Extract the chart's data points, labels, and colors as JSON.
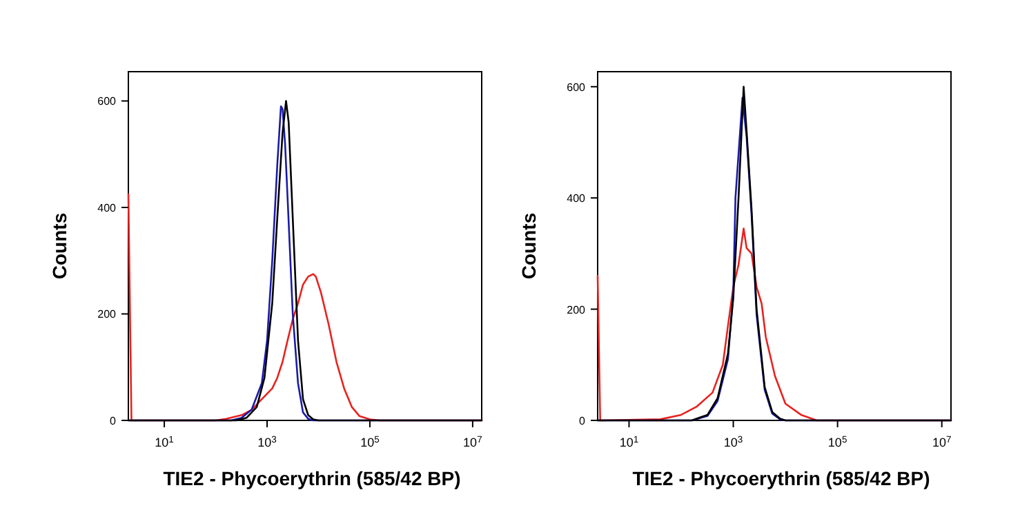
{
  "chart_data": [
    {
      "type": "line",
      "log": "x",
      "xlabel": "TIE2 - Phycoerythrin (585/42 BP)",
      "ylabel": "Counts",
      "xlim": [
        2,
        15000000
      ],
      "ylim": [
        0,
        655
      ],
      "xticks": [
        {
          "value": 10,
          "label": "10$^{1}$"
        },
        {
          "value": 1000,
          "label": "10$^{3}$"
        },
        {
          "value": 100000,
          "label": "10$^{5}$"
        },
        {
          "value": 10000000,
          "label": "10$^{7}$"
        }
      ],
      "yticks": [
        0,
        200,
        400,
        600
      ],
      "series": [
        {
          "color": "#e8221f",
          "x": [
            2,
            2.3,
            100,
            160,
            320,
            500,
            790,
            1260,
            1580,
            2000,
            2500,
            3160,
            4000,
            5000,
            6300,
            7900,
            8900,
            11200,
            15800,
            22400,
            31600,
            44700,
            63000,
            100000,
            158000,
            15000000
          ],
          "values": [
            425,
            0,
            0,
            3,
            10,
            20,
            40,
            60,
            80,
            110,
            150,
            190,
            220,
            255,
            270,
            275,
            270,
            240,
            180,
            110,
            60,
            25,
            8,
            2,
            0,
            0
          ]
        },
        {
          "color": "#1a1aa8",
          "x": [
            2,
            200,
            320,
            500,
            790,
            1000,
            1260,
            1580,
            1860,
            2000,
            2240,
            2500,
            3160,
            4000,
            5000,
            6300,
            7900,
            15000000
          ],
          "values": [
            0,
            0,
            5,
            20,
            70,
            150,
            300,
            480,
            590,
            585,
            520,
            420,
            200,
            70,
            15,
            3,
            0,
            0
          ]
        },
        {
          "color": "#000000",
          "x": [
            2,
            250,
            400,
            630,
            890,
            1260,
            1580,
            2000,
            2340,
            2630,
            3160,
            4000,
            5000,
            6300,
            7900,
            10000,
            15000000
          ],
          "values": [
            0,
            0,
            5,
            25,
            80,
            220,
            380,
            540,
            600,
            560,
            380,
            150,
            40,
            10,
            2,
            0,
            0
          ]
        }
      ]
    },
    {
      "type": "line",
      "log": "x",
      "xlabel": "TIE2 - Phycoerythrin (585/42 BP)",
      "ylabel": "Counts",
      "xlim": [
        2.5,
        15000000
      ],
      "ylim": [
        0,
        627
      ],
      "xticks": [
        {
          "value": 10,
          "label": "10$^{1}$"
        },
        {
          "value": 1000,
          "label": "10$^{3}$"
        },
        {
          "value": 100000,
          "label": "10$^{5}$"
        },
        {
          "value": 10000000,
          "label": "10$^{7}$"
        }
      ],
      "yticks": [
        0,
        200,
        400,
        600
      ],
      "series": [
        {
          "color": "#e8221f",
          "x": [
            2.5,
            2.8,
            40,
            100,
            200,
            400,
            630,
            790,
            1000,
            1260,
            1580,
            1800,
            2240,
            2800,
            3500,
            4200,
            6300,
            10000,
            20000,
            40000,
            15000000
          ],
          "values": [
            260,
            0,
            2,
            10,
            25,
            50,
            100,
            170,
            240,
            280,
            345,
            310,
            300,
            240,
            210,
            150,
            80,
            30,
            10,
            0,
            0
          ]
        },
        {
          "color": "#1a1aa8",
          "x": [
            2.5,
            160,
            320,
            500,
            790,
            1000,
            1100,
            1500,
            1800,
            2240,
            2800,
            4000,
            5600,
            7900,
            10000,
            15000000
          ],
          "values": [
            0,
            0,
            8,
            35,
            110,
            230,
            400,
            580,
            510,
            370,
            190,
            55,
            12,
            2,
            0,
            0
          ]
        },
        {
          "color": "#000000",
          "x": [
            2.5,
            160,
            320,
            500,
            790,
            1000,
            1260,
            1580,
            1800,
            2240,
            2800,
            4000,
            5600,
            7900,
            10000,
            15000000
          ],
          "values": [
            0,
            0,
            10,
            40,
            120,
            220,
            400,
            600,
            520,
            380,
            200,
            60,
            15,
            3,
            0,
            0
          ]
        }
      ]
    }
  ]
}
